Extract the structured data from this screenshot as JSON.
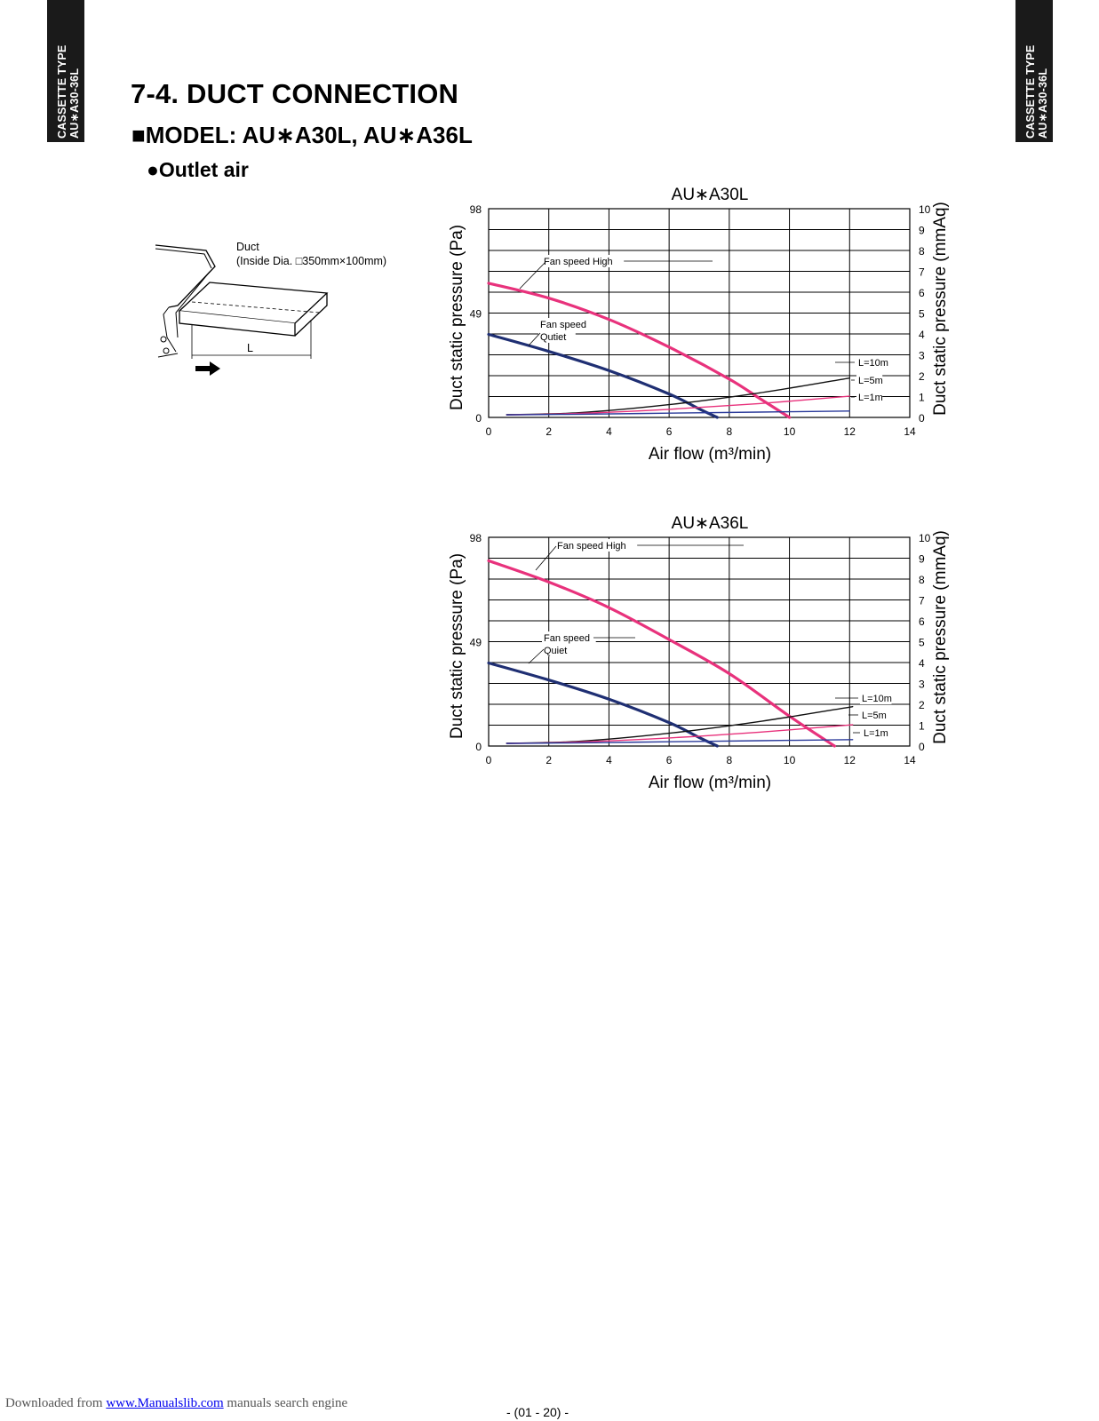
{
  "side_tab": {
    "line1": "CASSETTE TYPE",
    "line2": "AU∗A30-36L"
  },
  "heading": "7-4. DUCT CONNECTION",
  "subheading": {
    "bullet": "■",
    "text": "MODEL: AU∗A30L, AU∗A36L"
  },
  "subsubheading": {
    "bullet": "●",
    "text": "Outlet air"
  },
  "diagram": {
    "duct_label": "Duct",
    "inside_dia": "(Inside Dia. □350mm×100mm)",
    "length_label": "L"
  },
  "colors": {
    "high": "#e8327c",
    "quiet": "#1f2f73",
    "l10": "#111111",
    "l5": "#e8327c",
    "l1": "#2a3a9a"
  },
  "chart_data": [
    {
      "type": "line",
      "title": "AU∗A30L",
      "xlabel": "Air flow (m³/min)",
      "ylabel": "Duct static pressure (Pa)",
      "y2label": "Duct static pressure (mmAq)",
      "xlim": [
        0,
        14
      ],
      "ylim": [
        0,
        98
      ],
      "y2lim": [
        0,
        10
      ],
      "xticks": [
        0,
        2,
        4,
        6,
        8,
        10,
        12,
        14
      ],
      "yticks": [
        0,
        49,
        98
      ],
      "y2ticks": [
        0,
        1,
        2,
        3,
        4,
        5,
        6,
        7,
        8,
        9,
        10
      ],
      "grid": true,
      "series": [
        {
          "name": "Fan speed High",
          "color": "#e8327c",
          "width": 3.2,
          "x": [
            0,
            2,
            4,
            6,
            8,
            9,
            10
          ],
          "y": [
            63,
            56,
            46,
            33,
            18,
            9,
            0
          ]
        },
        {
          "name": "Fan speed Qutiet",
          "color": "#1f2f73",
          "width": 3.2,
          "x": [
            0,
            2,
            4,
            6,
            7,
            7.6
          ],
          "y": [
            39,
            31,
            22,
            11,
            4,
            0
          ]
        },
        {
          "name": "L=10m",
          "color": "#111111",
          "width": 1.4,
          "x": [
            0.6,
            3,
            6,
            9,
            12
          ],
          "y": [
            1.3,
            2.2,
            6,
            11.5,
            18.5
          ]
        },
        {
          "name": "L=5m",
          "color": "#e8327c",
          "width": 1.4,
          "x": [
            0.6,
            3,
            6,
            9,
            12
          ],
          "y": [
            1.2,
            1.9,
            3.8,
            6.5,
            10
          ]
        },
        {
          "name": "L=1m",
          "color": "#2a3a9a",
          "width": 1.4,
          "x": [
            0.6,
            3,
            6,
            9,
            12
          ],
          "y": [
            1.2,
            1.5,
            2.0,
            2.5,
            3
          ]
        }
      ],
      "labels": [
        {
          "text": "Fan speed High",
          "series": "Fan speed High"
        },
        {
          "text": "Fan speed",
          "series": "Fan speed Qutiet"
        },
        {
          "text": "Qutiet",
          "series": "Fan speed Qutiet"
        },
        {
          "text": "L=10m",
          "series": "L=10m"
        },
        {
          "text": "L=5m",
          "series": "L=5m"
        },
        {
          "text": "L=1m",
          "series": "L=1m"
        }
      ]
    },
    {
      "type": "line",
      "title": "AU∗A36L",
      "xlabel": "Air flow (m³/min)",
      "ylabel": "Duct static pressure (Pa)",
      "y2label": "Duct static pressure (mmAq)",
      "xlim": [
        0,
        14
      ],
      "ylim": [
        0,
        98
      ],
      "y2lim": [
        0,
        10
      ],
      "xticks": [
        0,
        2,
        4,
        6,
        8,
        10,
        12,
        14
      ],
      "yticks": [
        0,
        49,
        98
      ],
      "y2ticks": [
        0,
        1,
        2,
        3,
        4,
        5,
        6,
        7,
        8,
        9,
        10
      ],
      "grid": true,
      "series": [
        {
          "name": "Fan speed High",
          "color": "#e8327c",
          "width": 3.2,
          "x": [
            0,
            2,
            4,
            6,
            8,
            10,
            11.5
          ],
          "y": [
            87,
            77,
            65,
            50,
            34,
            14,
            0
          ]
        },
        {
          "name": "Fan speed Quiet",
          "color": "#1f2f73",
          "width": 3.2,
          "x": [
            0,
            2,
            4,
            6,
            7,
            7.6
          ],
          "y": [
            39,
            31,
            22,
            11,
            4,
            0
          ]
        },
        {
          "name": "L=10m",
          "color": "#111111",
          "width": 1.4,
          "x": [
            0.6,
            3,
            6,
            9,
            12.1
          ],
          "y": [
            1.3,
            2.2,
            6,
            11.5,
            18.5
          ]
        },
        {
          "name": "L=5m",
          "color": "#e8327c",
          "width": 1.4,
          "x": [
            0.6,
            3,
            6,
            9,
            12.1
          ],
          "y": [
            1.2,
            1.9,
            3.8,
            6.5,
            10
          ]
        },
        {
          "name": "L=1m",
          "color": "#2a3a9a",
          "width": 1.4,
          "x": [
            0.6,
            3,
            6,
            9,
            12.1
          ],
          "y": [
            1.2,
            1.5,
            2.0,
            2.5,
            3
          ]
        }
      ],
      "labels": [
        {
          "text": "Fan speed High",
          "series": "Fan speed High"
        },
        {
          "text": "Fan speed",
          "series": "Fan speed Quiet"
        },
        {
          "text": "Quiet",
          "series": "Fan speed Quiet"
        },
        {
          "text": "L=10m",
          "series": "L=10m"
        },
        {
          "text": "L=5m",
          "series": "L=5m"
        },
        {
          "text": "L=1m",
          "series": "L=1m"
        }
      ]
    }
  ],
  "footer": {
    "downloaded_prefix": "Downloaded from ",
    "link_text": "www.Manualslib.com",
    "suffix": " manuals search engine",
    "page_number": "- (01 - 20) -"
  }
}
